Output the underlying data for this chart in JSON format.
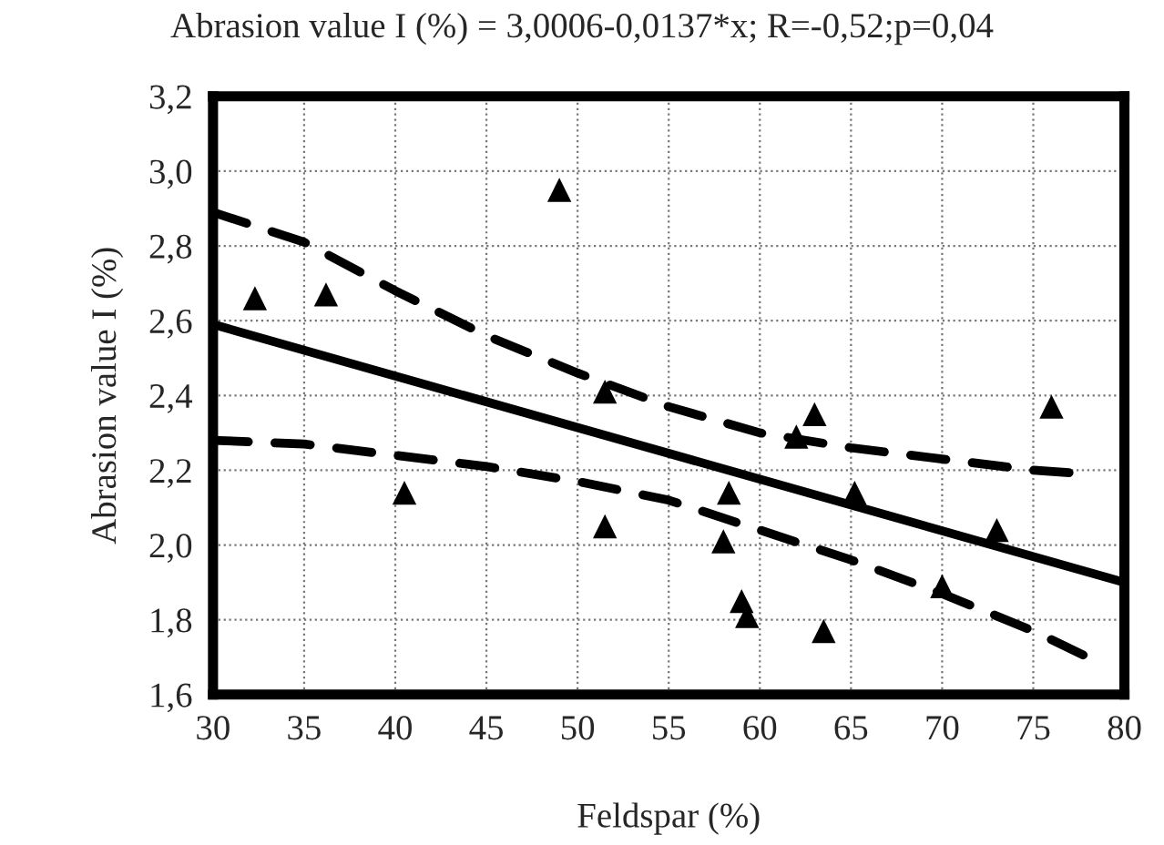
{
  "chart_data": {
    "type": "scatter",
    "title": "Abrasion value I (%) = 3,0006-0,0137*x; R=-0,52;p=0,04",
    "xlabel": "Feldspar (%)",
    "ylabel": "Abrasion value I (%)",
    "xlim": [
      30,
      80
    ],
    "xticks": [
      30,
      35,
      40,
      45,
      50,
      55,
      60,
      65,
      70,
      75,
      80
    ],
    "ylim": [
      1.6,
      3.2
    ],
    "yticks": [
      {
        "value": 1.6,
        "label": "1,6"
      },
      {
        "value": 1.8,
        "label": "1,8"
      },
      {
        "value": 2.0,
        "label": "2,0"
      },
      {
        "value": 2.2,
        "label": "2,2"
      },
      {
        "value": 2.4,
        "label": "2,4"
      },
      {
        "value": 2.6,
        "label": "2,6"
      },
      {
        "value": 2.8,
        "label": "2,8"
      },
      {
        "value": 3.0,
        "label": "3,0"
      },
      {
        "value": 3.2,
        "label": "3,2"
      }
    ],
    "grid": true,
    "legend": false,
    "series": [
      {
        "marker": "triangle",
        "color": "#000000",
        "x": [
          32.3,
          36.2,
          40.5,
          49,
          51.5,
          51.5,
          58,
          58.3,
          59,
          59.3,
          62,
          63,
          63.5,
          65.2,
          70,
          73,
          76
        ],
        "values": [
          2.66,
          2.67,
          2.14,
          2.95,
          2.41,
          2.05,
          2.01,
          2.14,
          1.85,
          1.81,
          2.29,
          2.35,
          1.77,
          2.14,
          1.89,
          2.04,
          2.37
        ]
      },
      {
        "type": "line",
        "line_style": "solid",
        "color": "#000000",
        "x": [
          30,
          80
        ],
        "values": [
          2.59,
          1.9
        ]
      },
      {
        "type": "line",
        "line_style": "dashed",
        "color": "#000000",
        "x": [
          30,
          35,
          40,
          45,
          50,
          55,
          60,
          65,
          70,
          75,
          78
        ],
        "values": [
          2.89,
          2.81,
          2.68,
          2.56,
          2.46,
          2.37,
          2.3,
          2.26,
          2.23,
          2.2,
          2.19
        ]
      },
      {
        "type": "line",
        "line_style": "dashed",
        "color": "#000000",
        "x": [
          30,
          35,
          40,
          45,
          50,
          55,
          60,
          65,
          70,
          75,
          78
        ],
        "values": [
          2.28,
          2.27,
          2.24,
          2.21,
          2.17,
          2.12,
          2.04,
          1.96,
          1.87,
          1.77,
          1.7
        ]
      }
    ]
  }
}
